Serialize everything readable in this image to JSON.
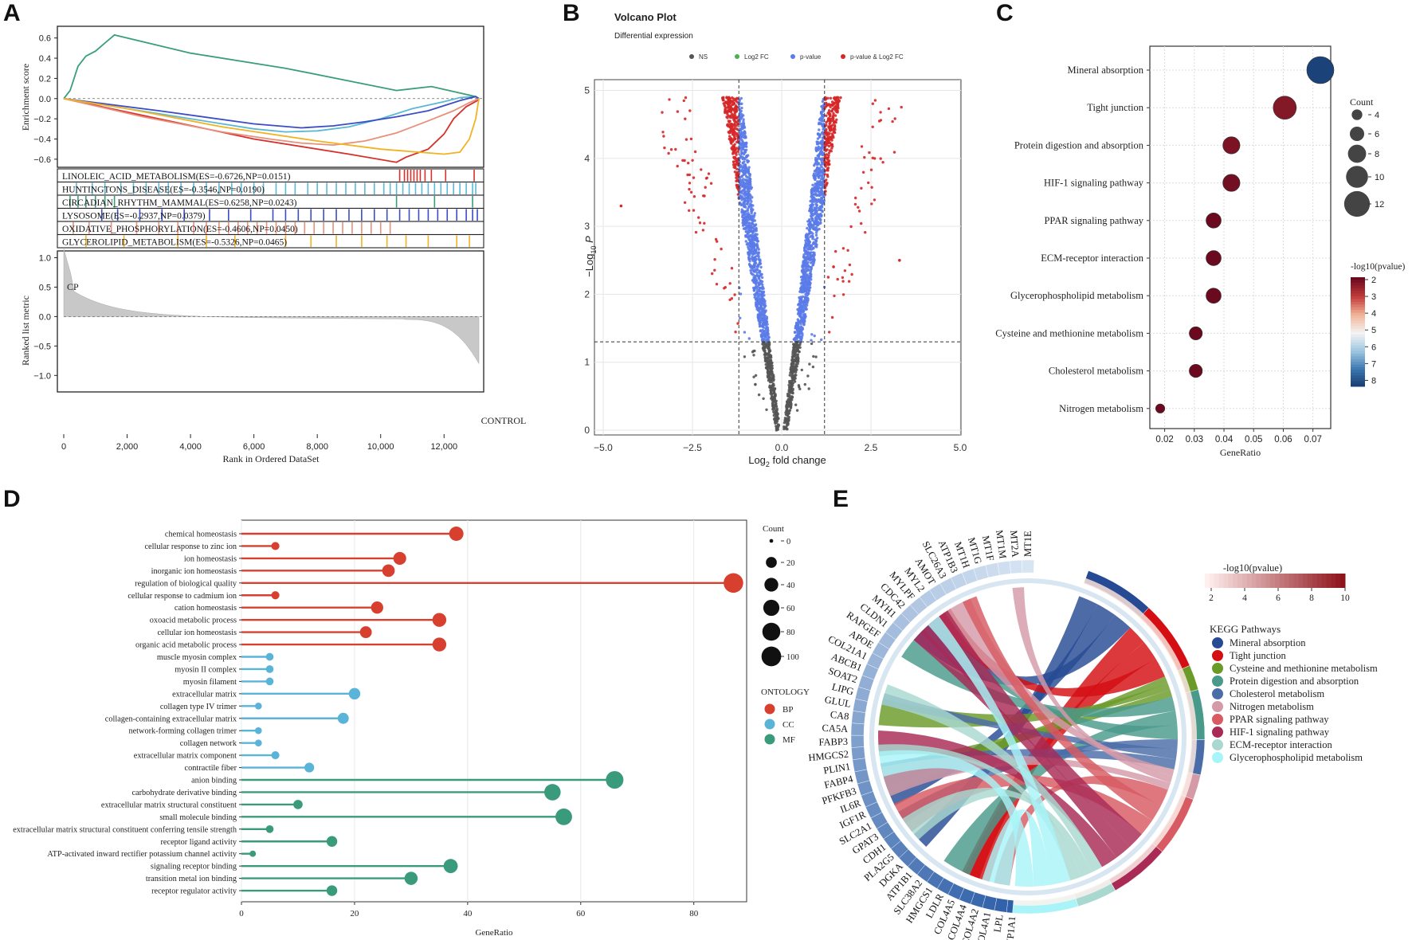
{
  "panels": {
    "a": "A",
    "b": "B",
    "c": "C",
    "d": "D",
    "e": "E"
  },
  "chart_data": [
    {
      "id": "gsea",
      "type": "line",
      "title": "",
      "ylabel_top": "Enrichment score",
      "ylabel_bottom": "Ranked list metric",
      "xlabel": "Rank in Ordered DataSet",
      "xlim": [
        0,
        13200
      ],
      "ylim_top": [
        -0.68,
        0.7
      ],
      "ylim_bottom": [
        -1.05,
        1.25
      ],
      "x_ticks": [
        0,
        2000,
        4000,
        6000,
        8000,
        10000,
        12000
      ],
      "x_tick_labels": [
        "0",
        "2,000",
        "4,000",
        "6,000",
        "8,000",
        "10,000",
        "12,000"
      ],
      "y_ticks_top": [
        0.6,
        0.4,
        0.2,
        0.0,
        -0.2,
        -0.4,
        -0.6
      ],
      "y_tick_labels_top": [
        "0.6",
        "0.4",
        "0.2",
        "0.0",
        "−0.2",
        "−0.4",
        "−0.6"
      ],
      "y_ticks_bottom": [
        1.0,
        0.5,
        0.0,
        -0.5,
        -1.0
      ],
      "y_tick_labels_bottom": [
        "1.0",
        "0.5",
        "0.0",
        "−0.5",
        "−1.0"
      ],
      "annotations": {
        "top_left": "CP",
        "bottom_right": "CONTROL"
      },
      "series": [
        {
          "name": "LINOLEIC_ACID_METABOLISM(ES=-0.6726,NP=0.0151)",
          "color": "#d7302a",
          "x": [
            0,
            3000,
            6000,
            9000,
            10500,
            10800,
            11500,
            12000,
            12300,
            12700,
            13050,
            13100
          ],
          "y": [
            0,
            -0.2,
            -0.4,
            -0.55,
            -0.63,
            -0.58,
            -0.5,
            -0.35,
            -0.2,
            -0.08,
            -0.02,
            0
          ],
          "hits": [
            10600,
            10750,
            10850,
            10950,
            11050,
            11150,
            11250,
            11400,
            11600,
            12050,
            12950
          ]
        },
        {
          "name": "HUNTINGTONS_DISEASE(ES=-0.3546,NP=0.0190)",
          "color": "#5bb8d4",
          "x": [
            0,
            2000,
            4000,
            6000,
            7000,
            8000,
            9000,
            10000,
            11000,
            12000,
            12500,
            13000,
            13100
          ],
          "y": [
            0,
            -0.1,
            -0.2,
            -0.3,
            -0.33,
            -0.32,
            -0.28,
            -0.2,
            -0.1,
            -0.03,
            0.01,
            0.02,
            0
          ],
          "hits": [
            400,
            900,
            1300,
            1800,
            2200,
            2600,
            3000,
            3300,
            3700,
            4100,
            4500,
            4900,
            5300,
            5600,
            6000,
            6300,
            6700,
            7000,
            7300,
            7700,
            8000,
            8300,
            8600,
            8900,
            9200,
            9500,
            9800,
            10100,
            10300,
            10500,
            10700,
            10900,
            11100,
            11300,
            11500,
            11700,
            11900,
            12100,
            12300,
            12500,
            12700,
            12900,
            13000
          ]
        },
        {
          "name": "CIRCADIAN_RHYTHM_MAMMAL(ES=0.6258,NP=0.0243)",
          "color": "#3a9e7a",
          "x": [
            0,
            200,
            450,
            700,
            1000,
            1300,
            1600,
            4000,
            7000,
            10500,
            11600,
            13000,
            13100
          ],
          "y": [
            0,
            0.08,
            0.32,
            0.42,
            0.47,
            0.55,
            0.63,
            0.45,
            0.3,
            0.08,
            0.12,
            0.02,
            0
          ],
          "hits": [
            200,
            450,
            700,
            1000,
            1300,
            1600,
            10500,
            11700,
            12900
          ]
        },
        {
          "name": "LYSOSOME(ES=-0.2937,NP=0.0379)",
          "color": "#3a4dc4",
          "x": [
            0,
            3000,
            6000,
            7500,
            8500,
            9500,
            10500,
            11500,
            12000,
            12500,
            13000,
            13100
          ],
          "y": [
            0,
            -0.12,
            -0.25,
            -0.29,
            -0.27,
            -0.23,
            -0.18,
            -0.12,
            -0.07,
            -0.02,
            0.02,
            0
          ],
          "hits": [
            1200,
            1700,
            2400,
            3100,
            3800,
            4600,
            5200,
            5900,
            6600,
            7000,
            7400,
            7800,
            8200,
            8600,
            9000,
            9400,
            9800,
            10200,
            10600,
            10900,
            11200,
            11500,
            11800,
            12100,
            12400,
            12700,
            12900,
            13050
          ]
        },
        {
          "name": "OXIDATIVE_PHOSPHORYLATION(ES=-0.4606,NP=0.0450)",
          "color": "#e8907a",
          "x": [
            0,
            2500,
            5000,
            6500,
            7500,
            8500,
            9500,
            10500,
            11500,
            12300,
            12800,
            13100
          ],
          "y": [
            0,
            -0.18,
            -0.33,
            -0.4,
            -0.44,
            -0.46,
            -0.42,
            -0.34,
            -0.22,
            -0.12,
            -0.04,
            0
          ],
          "hits": [
            300,
            800,
            1500,
            2300,
            3000,
            3600,
            4100,
            4500,
            4900,
            5200,
            5500,
            5800,
            6100,
            6400,
            6700,
            7000,
            7300,
            7600,
            7900,
            8200,
            8500,
            8800,
            9100,
            9400,
            9700,
            10000,
            10300
          ]
        },
        {
          "name": "GLYCEROLIPID_METABOLISM(ES=-0.5326,NP=0.0465)",
          "color": "#f0b323",
          "x": [
            0,
            2000,
            5000,
            8000,
            10000,
            12000,
            12500,
            12800,
            13000,
            13100
          ],
          "y": [
            0,
            -0.1,
            -0.28,
            -0.42,
            -0.5,
            -0.55,
            -0.53,
            -0.4,
            -0.2,
            0
          ],
          "hits": [
            700,
            1900,
            3600,
            4500,
            5400,
            7000,
            7800,
            8600,
            9400,
            10200,
            10800,
            11500,
            12400,
            12800
          ]
        }
      ]
    },
    {
      "id": "volcano",
      "type": "scatter",
      "title": "Volcano Plot",
      "subtitle": "Differential expression",
      "xlabel_main": "Log",
      "xlabel_sub": "2",
      "xlabel_tail": " fold change",
      "ylabel_main": "−Log",
      "ylabel_sub": "10",
      "ylabel_tail": "P",
      "xlim": [
        -5.0,
        5.0
      ],
      "ylim": [
        0,
        5.1
      ],
      "x_ticks": [
        -5.0,
        -2.5,
        0.0,
        2.5,
        5.0
      ],
      "x_tick_labels": [
        "−5.0",
        "−2.5",
        "0.0",
        "2.5",
        "5.0"
      ],
      "y_ticks": [
        0,
        1,
        2,
        3,
        4,
        5
      ],
      "y_tick_labels": [
        "0",
        "1",
        "2",
        "3",
        "4",
        "5"
      ],
      "fc_cutoff": 1.2,
      "p_cutoff": 1.3,
      "legend": [
        {
          "label": "NS",
          "color": "#555555"
        },
        {
          "label": "Log2 FC",
          "color": "#4caf50"
        },
        {
          "label": "p-value",
          "color": "#5b7be8"
        },
        {
          "label": "p-value & Log2 FC",
          "color": "#d62728"
        }
      ],
      "point_count": 3000
    },
    {
      "id": "kegg_dot",
      "type": "scatter",
      "xlabel": "GeneRatio",
      "xlim": [
        0.015,
        0.076
      ],
      "x_ticks": [
        0.02,
        0.03,
        0.04,
        0.05,
        0.06,
        0.07
      ],
      "x_tick_labels": [
        "0.02",
        "0.03",
        "0.04",
        "0.05",
        "0.06",
        "0.07"
      ],
      "categories": [
        "Mineral absorption",
        "Tight junction",
        "Protein digestion and absorption",
        "HIF-1 signaling pathway",
        "PPAR signaling pathway",
        "ECM-receptor interaction",
        "Glycerophospholipid metabolism",
        "Cysteine and methionine metabolism",
        "Cholesterol metabolism",
        "Nitrogen metabolism"
      ],
      "gene_ratio": [
        0.0725,
        0.0605,
        0.0425,
        0.0425,
        0.0365,
        0.0365,
        0.0365,
        0.0305,
        0.0305,
        0.0185
      ],
      "count": [
        12,
        10,
        7,
        7,
        6,
        6,
        6,
        5,
        5,
        3
      ],
      "neglog10p": [
        8.3,
        2.3,
        2.2,
        2.1,
        2.0,
        2.0,
        2.0,
        2.0,
        2.0,
        2.0
      ],
      "size_legend_title": "Count",
      "size_legend_values": [
        4,
        6,
        8,
        10,
        12
      ],
      "size_legend_labels": [
        "4",
        "6",
        "8",
        "10",
        "12"
      ],
      "color_legend_title": "-log10(pvalue)",
      "color_legend_ticks": [
        2,
        3,
        4,
        5,
        6,
        7,
        8
      ],
      "color_legend_labels": [
        "2",
        "3",
        "4",
        "5",
        "6",
        "7",
        "8"
      ]
    },
    {
      "id": "go_lollipop",
      "type": "scatter",
      "xlabel": "GeneRatio",
      "xlim": [
        0,
        88
      ],
      "x_ticks": [
        0,
        20,
        40,
        60,
        80
      ],
      "x_tick_labels": [
        "0",
        "20",
        "40",
        "60",
        "80"
      ],
      "categories": [
        "chemical homeostasis",
        "cellular response to zinc ion",
        "ion homeostasis",
        "inorganic ion homeostasis",
        "regulation of biological quality",
        "cellular response to cadmium ion",
        "cation homeostasis",
        "oxoacid metabolic process",
        "cellular ion homeostasis",
        "organic acid metabolic process",
        "muscle myosin complex",
        "myosin II complex",
        "myosin filament",
        "extracellular matrix",
        "collagen type IV trimer",
        "collagen-containing extracellular matrix",
        "network-forming collagen trimer",
        "collagen network",
        "extracellular matrix component",
        "contractile fiber",
        "anion binding",
        "carbohydrate derivative binding",
        "extracellular matrix structural constituent",
        "small molecule binding",
        "extracellular matrix structural constituent conferring tensile strength",
        "receptor ligand activity",
        "ATP-activated inward rectifier potassium channel activity",
        "signaling receptor binding",
        "transition metal ion binding",
        "receptor regulator activity"
      ],
      "values": [
        38,
        6,
        28,
        26,
        87,
        6,
        24,
        35,
        22,
        35,
        5,
        5,
        5,
        20,
        3,
        18,
        3,
        3,
        6,
        12,
        66,
        55,
        10,
        57,
        5,
        16,
        2,
        37,
        30,
        16
      ],
      "ontology": [
        "BP",
        "BP",
        "BP",
        "BP",
        "BP",
        "BP",
        "BP",
        "BP",
        "BP",
        "BP",
        "CC",
        "CC",
        "CC",
        "CC",
        "CC",
        "CC",
        "CC",
        "CC",
        "CC",
        "CC",
        "MF",
        "MF",
        "MF",
        "MF",
        "MF",
        "MF",
        "MF",
        "MF",
        "MF",
        "MF"
      ],
      "count_legend_title": "Count",
      "count_legend_values": [
        0,
        20,
        40,
        60,
        80,
        100
      ],
      "count_legend_labels": [
        "0",
        "20",
        "40",
        "60",
        "80",
        "100"
      ],
      "ontology_legend_title": "ONTOLOGY",
      "ontology_legend": [
        {
          "label": "BP",
          "color": "#d7402f"
        },
        {
          "label": "CC",
          "color": "#5ab4d8"
        },
        {
          "label": "MF",
          "color": "#3a9a7c"
        }
      ]
    },
    {
      "id": "kegg_chord",
      "type": "chord",
      "genes": [
        "CYP1A1",
        "LPL",
        "COL4A1",
        "COL4A2",
        "COL4A4",
        "COL4A5",
        "LDLR",
        "HMGCS1",
        "SLC38A2",
        "ATP1B1",
        "DGKA",
        "PLA2G5",
        "CDH1",
        "GPAT3",
        "SLC2A1",
        "IGF1R",
        "IL6R",
        "PFKFB3",
        "FABP4",
        "PLIN1",
        "HMGCS2",
        "FABP3",
        "CA5A",
        "CA8",
        "GLUL",
        "LIPG",
        "SOAT2",
        "ABCB1",
        "COL21A1",
        "APOE",
        "RAPGEF",
        "CLDN1",
        "MYH1",
        "CDC42",
        "MYLPF",
        "MYL2",
        "AMOT",
        "SLC26A3",
        "ATP1B3",
        "MT1H",
        "MT1G",
        "MT1F",
        "MT1M",
        "MT2A",
        "MT1E"
      ],
      "color_legend_title": "-log10(pvalue)",
      "color_legend_ticks": [
        2,
        4,
        6,
        8,
        10
      ],
      "color_legend_labels": [
        "2",
        "4",
        "6",
        "8",
        "10"
      ],
      "pathway_legend_title": "KEGG Pathways",
      "pathways": [
        {
          "label": "Mineral absorption",
          "color": "#264a94"
        },
        {
          "label": "Tight junction",
          "color": "#d40e12"
        },
        {
          "label": "Cysteine and methionine metabolism",
          "color": "#6a9a28"
        },
        {
          "label": "Protein digestion and absorption",
          "color": "#4a9a8c"
        },
        {
          "label": "Cholesterol metabolism",
          "color": "#4a6da8"
        },
        {
          "label": "Nitrogen metabolism",
          "color": "#d49aa8"
        },
        {
          "label": "PPAR signaling pathway",
          "color": "#d85a62"
        },
        {
          "label": "HIF-1 signaling pathway",
          "color": "#a82a55"
        },
        {
          "label": "ECM-receptor interaction",
          "color": "#a8d8d0"
        },
        {
          "label": "Glycerophospholipid metabolism",
          "color": "#a8f4f8"
        }
      ]
    }
  ]
}
